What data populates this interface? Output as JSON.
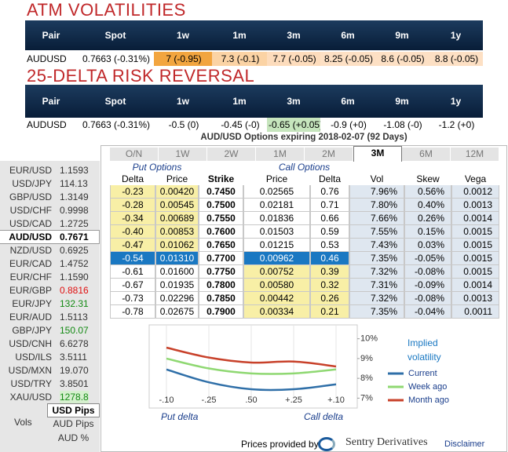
{
  "atm": {
    "title": "ATM VOLATILITIES",
    "headers": [
      "Pair",
      "Spot",
      "1w",
      "1m",
      "3m",
      "6m",
      "9m",
      "1y"
    ],
    "cells": [
      "AUDUSD",
      "0.7663 (-0.31%)",
      "7 (-0.95)",
      "7.3 (-0.1)",
      "7.7 (-0.05)",
      "8.25 (-0.05)",
      "8.6 (-0.05)",
      "8.8 (-0.05)"
    ]
  },
  "risk_reversal": {
    "title": "25-DELTA RISK REVERSAL",
    "headers": [
      "Pair",
      "Spot",
      "1w",
      "1m",
      "3m",
      "6m",
      "9m",
      "1y"
    ],
    "cells": [
      "AUDUSD",
      "0.7663 (-0.31%)",
      "-0.5 (0)",
      "-0.45 (-0)",
      "-0.65 (+0.05)",
      "-0.9 (+0)",
      "-1.08 (-0)",
      "-1.2 (+0)"
    ]
  },
  "markets": [
    {
      "pair": "EUR/USD",
      "value": "1.1593"
    },
    {
      "pair": "USD/JPY",
      "value": "114.13"
    },
    {
      "pair": "GBP/USD",
      "value": "1.3149"
    },
    {
      "pair": "USD/CHF",
      "value": "0.9998"
    },
    {
      "pair": "USD/CAD",
      "value": "1.2725"
    },
    {
      "pair": "AUD/USD",
      "value": "0.7671",
      "selected": true
    },
    {
      "pair": "NZD/USD",
      "value": "0.6925"
    },
    {
      "pair": "EUR/CAD",
      "value": "1.4752"
    },
    {
      "pair": "EUR/CHF",
      "value": "1.1590"
    },
    {
      "pair": "EUR/GBP",
      "value": "0.8816",
      "color": "#e01010"
    },
    {
      "pair": "EUR/JPY",
      "value": "132.31",
      "color": "#138a13"
    },
    {
      "pair": "EUR/AUD",
      "value": "1.5113"
    },
    {
      "pair": "GBP/JPY",
      "value": "150.07",
      "color": "#138a13"
    },
    {
      "pair": "USD/CNH",
      "value": "6.6278"
    },
    {
      "pair": "USD/ILS",
      "value": "3.5111"
    },
    {
      "pair": "USD/MXN",
      "value": "19.070"
    },
    {
      "pair": "USD/TRY",
      "value": "3.8501"
    },
    {
      "pair": "XAU/USD",
      "value": "1278.8",
      "color": "#138a13"
    }
  ],
  "units": {
    "selected": "USD Pips",
    "label": "Vols",
    "options": [
      "AUD Pips",
      "AUD %"
    ]
  },
  "options": {
    "title": "AUD/USD Options expiring 2018-02-07 (92 Days)",
    "tabs": [
      "O/N",
      "1W",
      "2W",
      "1M",
      "2M",
      "3M",
      "6M",
      "12M"
    ],
    "put_label": "Put Options",
    "call_label": "Call Options",
    "headers": [
      "Delta",
      "Price",
      "Strike",
      "Price",
      "Delta",
      "Vol",
      "Skew",
      "Vega"
    ],
    "rows": [
      [
        "-0.23",
        "0.00420",
        "0.7450",
        "0.02565",
        "0.76",
        "7.96%",
        "0.56%",
        "0.0012"
      ],
      [
        "-0.28",
        "0.00545",
        "0.7500",
        "0.02181",
        "0.71",
        "7.80%",
        "0.40%",
        "0.0013"
      ],
      [
        "-0.34",
        "0.00689",
        "0.7550",
        "0.01836",
        "0.66",
        "7.66%",
        "0.26%",
        "0.0014"
      ],
      [
        "-0.40",
        "0.00853",
        "0.7600",
        "0.01503",
        "0.59",
        "7.55%",
        "0.15%",
        "0.0015"
      ],
      [
        "-0.47",
        "0.01062",
        "0.7650",
        "0.01215",
        "0.53",
        "7.43%",
        "0.03%",
        "0.0015"
      ],
      [
        "-0.54",
        "0.01310",
        "0.7700",
        "0.00962",
        "0.46",
        "7.35%",
        "-0.05%",
        "0.0015"
      ],
      [
        "-0.61",
        "0.01600",
        "0.7750",
        "0.00752",
        "0.39",
        "7.32%",
        "-0.08%",
        "0.0015"
      ],
      [
        "-0.67",
        "0.01935",
        "0.7800",
        "0.00580",
        "0.32",
        "7.31%",
        "-0.09%",
        "0.0014"
      ],
      [
        "-0.73",
        "0.02296",
        "0.7850",
        "0.00442",
        "0.26",
        "7.32%",
        "-0.08%",
        "0.0013"
      ],
      [
        "-0.78",
        "0.02675",
        "0.7900",
        "0.00334",
        "0.21",
        "7.35%",
        "-0.04%",
        "0.0011"
      ]
    ]
  },
  "smile_chart": {
    "type": "line",
    "legend_title": "Implied volatility",
    "put_axis_label": "Put delta",
    "call_axis_label": "Call delta",
    "categories": [
      "-.10",
      "-.25",
      ".50",
      "+.25",
      "+.10"
    ],
    "ylim": [
      6.5,
      10.7
    ],
    "yticks": [
      {
        "value": 10,
        "label": "10%"
      },
      {
        "value": 9,
        "label": "9%"
      },
      {
        "value": 8,
        "label": "8%"
      },
      {
        "value": 7,
        "label": "7%"
      }
    ],
    "series": [
      {
        "name": "Current",
        "color": "#2f6fa8",
        "values": [
          8.45,
          7.8,
          7.45,
          7.45,
          7.7
        ]
      },
      {
        "name": "Week ago",
        "color": "#8fd872",
        "values": [
          9.0,
          8.5,
          8.25,
          8.25,
          8.45
        ]
      },
      {
        "name": "Month ago",
        "color": "#c8412a",
        "values": [
          9.55,
          9.05,
          8.8,
          8.85,
          8.6
        ]
      }
    ]
  },
  "footer": {
    "provided": "Prices provided by",
    "brand": "Sentry Derivatives",
    "disclaimer": "Disclaimer"
  }
}
